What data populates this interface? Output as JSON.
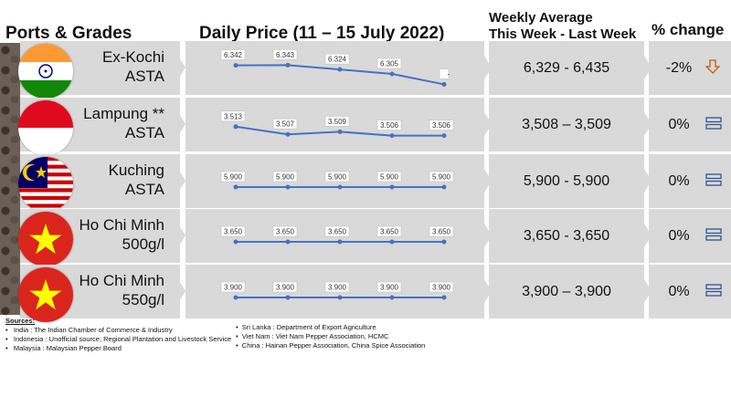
{
  "headers": {
    "ports_grades": "Ports & Grades",
    "daily_price": "Daily Price (11 – 15 July 2022)",
    "weekly_line1": "Weekly Average",
    "weekly_line2": "This Week - Last Week",
    "pct_change": "% change"
  },
  "colors": {
    "band": "#d9d9d9",
    "line": "#4472c4",
    "down_arrow": "#c55a11",
    "equal_icon": "#2f5597"
  },
  "rows": [
    {
      "flag": "india-flag",
      "port": "Ex-Kochi",
      "grade": "ASTA",
      "weekly": "6,329 - 6,435",
      "change": "-2%",
      "indicator": "down-arrow-icon"
    },
    {
      "flag": "indonesia-flag",
      "port": "Lampung **",
      "grade": "ASTA",
      "weekly": "3,508 – 3,509",
      "change": "0%",
      "indicator": "equal-icon"
    },
    {
      "flag": "malaysia-flag",
      "port": "Kuching",
      "grade": "ASTA",
      "weekly": "5,900 - 5,900",
      "change": "0%",
      "indicator": "equal-icon"
    },
    {
      "flag": "vietnam-flag",
      "port": "Ho Chi Minh",
      "grade": "500g/l",
      "weekly": "3,650 - 3,650",
      "change": "0%",
      "indicator": "equal-icon"
    },
    {
      "flag": "vietnam-flag",
      "port": "Ho Chi Minh",
      "grade": "550g/l",
      "weekly": "3,900 – 3,900",
      "change": "0%",
      "indicator": "equal-icon"
    }
  ],
  "chart_data": [
    {
      "type": "line",
      "labels": [
        "6.342",
        "6.343",
        "6.324",
        "6.305",
        "-"
      ],
      "values": [
        6.342,
        6.343,
        6.324,
        6.305,
        6.26
      ],
      "ylim": [
        6.25,
        6.36
      ]
    },
    {
      "type": "line",
      "labels": [
        "3.513",
        "3.507",
        "3.509",
        "3.506",
        "3.506"
      ],
      "values": [
        3.513,
        3.507,
        3.509,
        3.506,
        3.506
      ],
      "ylim": [
        3.5,
        3.52
      ]
    },
    {
      "type": "line",
      "labels": [
        "5.900",
        "5.900",
        "5.900",
        "5.900",
        "5.900"
      ],
      "values": [
        5.9,
        5.9,
        5.9,
        5.9,
        5.9
      ],
      "ylim": [
        5.85,
        5.95
      ]
    },
    {
      "type": "line",
      "labels": [
        "3.650",
        "3.650",
        "3.650",
        "3.650",
        "3.650"
      ],
      "values": [
        3.65,
        3.65,
        3.65,
        3.65,
        3.65
      ],
      "ylim": [
        3.6,
        3.7
      ]
    },
    {
      "type": "line",
      "labels": [
        "3.900",
        "3.900",
        "3.900",
        "3.900",
        "3.900"
      ],
      "values": [
        3.9,
        3.9,
        3.9,
        3.9,
        3.9
      ],
      "ylim": [
        3.85,
        3.95
      ]
    }
  ],
  "sources": {
    "title": "Sources:",
    "left": [
      "India : The Indian Chamber of Commerce & Industry",
      "Indonesia : Unofficial source, Regional Plantation and Livestock Service",
      "Malaysia : Malaysian Pepper Board"
    ],
    "right": [
      "Sri Lanka : Department of Export Agriculture",
      "Viet Nam : Viet Nam Pepper Association, HCMC",
      "China : Hainan Pepper Association, China Spice Association"
    ]
  }
}
